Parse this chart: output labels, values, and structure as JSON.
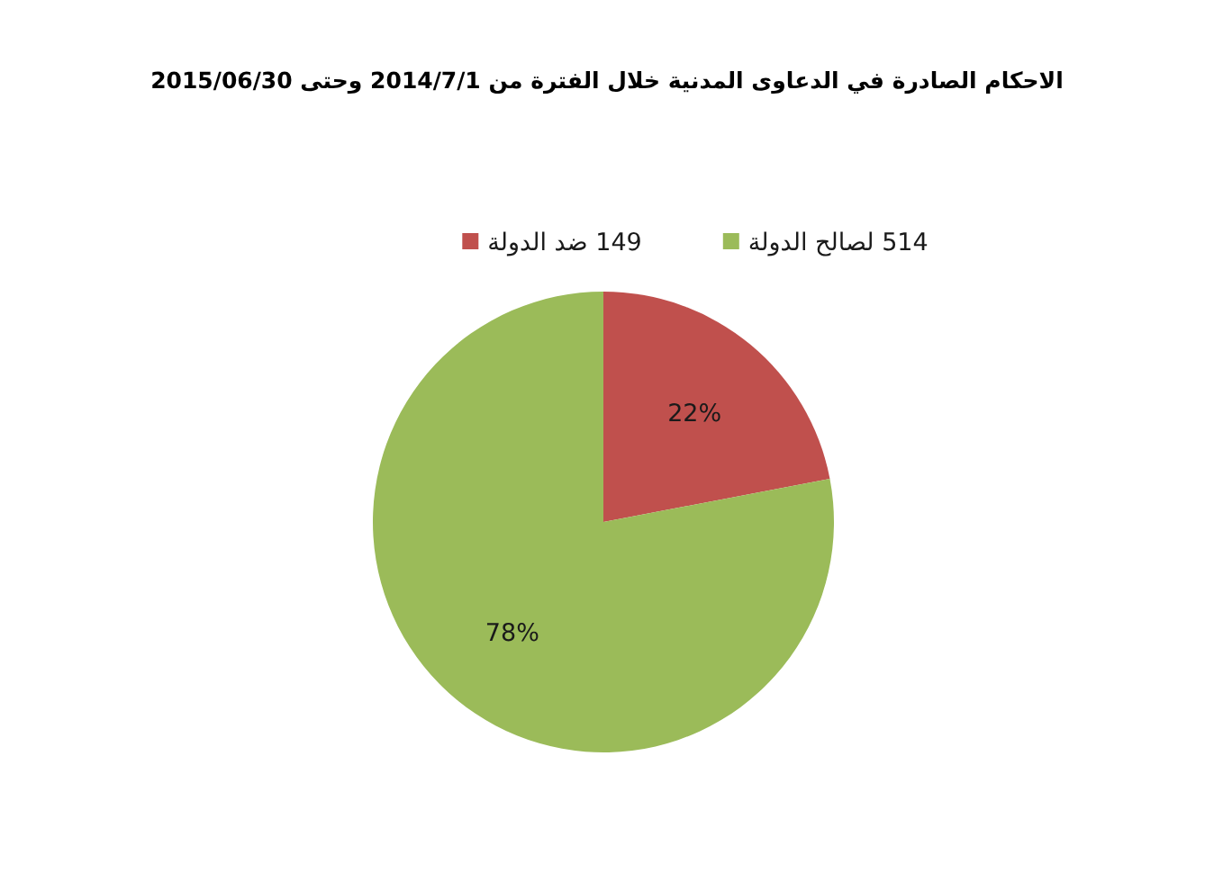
{
  "chart_data": {
    "type": "pie",
    "title": "الاحكام الصادرة في الدعاوى المدنية خلال الفترة من 2014/7/1 وحتى 2015/06/30",
    "categories": [
      "149 ضد الدولة",
      "514 لصالح الدولة"
    ],
    "values": [
      22,
      78
    ],
    "colors": [
      "#c0504d",
      "#9bbb59"
    ],
    "value_labels": [
      "22%",
      "78%"
    ],
    "legend": "top"
  }
}
